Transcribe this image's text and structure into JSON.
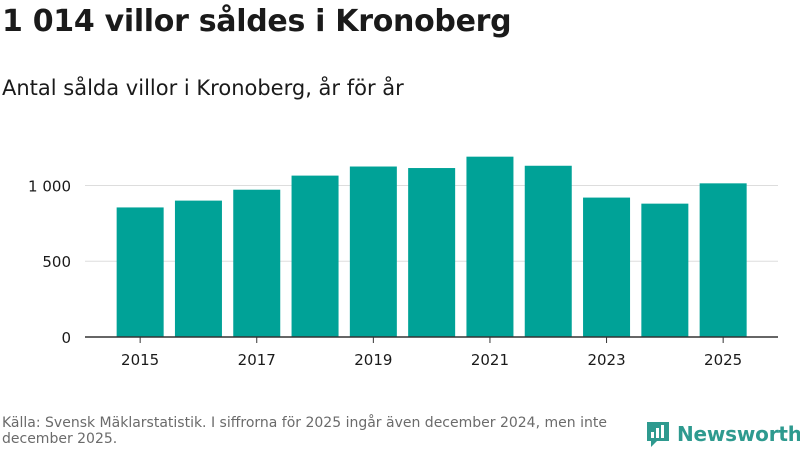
{
  "title": "1 014 villor såldes i Kronoberg",
  "subtitle": "Antal sålda villor i Kronoberg, år för år",
  "footnote": "Källa: Svensk Mäklarstatistik. I siffrorna för 2025 ingår även december 2024, men inte december 2025.",
  "brand": {
    "name": "Newsworthy",
    "color": "#2e9a8f"
  },
  "colors": {
    "bar": "#00a297",
    "grid": "#dddddd",
    "axis": "#333333"
  },
  "chart_data": {
    "type": "bar",
    "title": "Antal sålda villor i Kronoberg, år för år",
    "xlabel": "",
    "ylabel": "",
    "categories": [
      "2015",
      "2016",
      "2017",
      "2018",
      "2019",
      "2020",
      "2021",
      "2022",
      "2023",
      "2024",
      "2025"
    ],
    "values": [
      855,
      900,
      972,
      1065,
      1125,
      1115,
      1190,
      1130,
      920,
      880,
      1014
    ],
    "ylim": [
      0,
      1300
    ],
    "yticks": [
      0,
      500,
      1000
    ],
    "ytick_labels": [
      "0",
      "500",
      "1 000"
    ],
    "xtick_labels": [
      "2015",
      "2017",
      "2019",
      "2021",
      "2023",
      "2025"
    ],
    "grid": true
  }
}
